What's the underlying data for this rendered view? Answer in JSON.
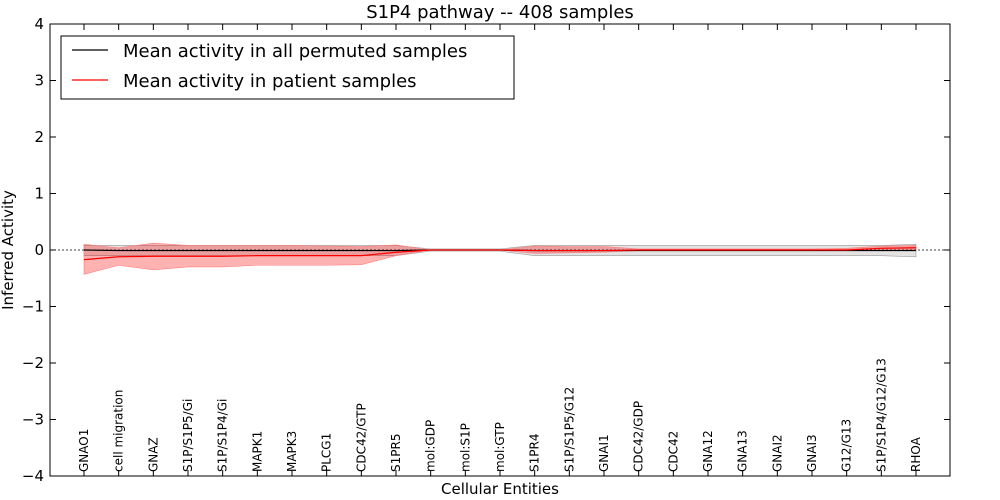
{
  "chart_data": {
    "type": "line",
    "title": "S1P4 pathway -- 408 samples",
    "xlabel": "Cellular Entities",
    "ylabel": "Inferred Activity",
    "ylim": [
      -4,
      4
    ],
    "yticks": [
      -4,
      -3,
      -2,
      -1,
      0,
      1,
      2,
      3,
      4
    ],
    "ytick_labels": [
      "−4",
      "−3",
      "−2",
      "−1",
      "0",
      "1",
      "2",
      "3",
      "4"
    ],
    "categories": [
      "GNAO1",
      "cell migration",
      "GNAZ",
      "S1P/S1P5/Gi",
      "S1P/S1P4/Gi",
      "MAPK1",
      "MAPK3",
      "PLCG1",
      "CDC42/GTP",
      "S1PR5",
      "mol:GDP",
      "mol:S1P",
      "mol:GTP",
      "S1PR4",
      "S1P/S1P5/G12",
      "GNAI1",
      "CDC42/GDP",
      "CDC42",
      "GNA12",
      "GNA13",
      "GNAI2",
      "GNAI3",
      "G12/G13",
      "S1P/S1P4/G12/G13",
      "RHOA"
    ],
    "legend": {
      "position": "top-left"
    },
    "series": [
      {
        "name": "Mean activity in all permuted samples",
        "color": "#000000",
        "band_color": "#c8c8c8",
        "values": [
          0.0,
          -0.01,
          -0.01,
          -0.01,
          -0.01,
          -0.01,
          -0.01,
          -0.01,
          -0.01,
          -0.01,
          0.0,
          0.0,
          0.0,
          -0.01,
          -0.01,
          -0.01,
          -0.01,
          -0.01,
          -0.01,
          -0.01,
          -0.01,
          -0.01,
          -0.01,
          -0.01,
          -0.01
        ],
        "lower": [
          -0.1,
          -0.1,
          -0.1,
          -0.1,
          -0.1,
          -0.1,
          -0.1,
          -0.1,
          -0.1,
          -0.1,
          -0.02,
          -0.02,
          -0.02,
          -0.1,
          -0.1,
          -0.1,
          -0.1,
          -0.1,
          -0.1,
          -0.1,
          -0.1,
          -0.1,
          -0.1,
          -0.1,
          -0.12
        ],
        "upper": [
          0.08,
          0.08,
          0.08,
          0.08,
          0.08,
          0.08,
          0.08,
          0.08,
          0.08,
          0.08,
          0.02,
          0.02,
          0.02,
          0.08,
          0.08,
          0.08,
          0.08,
          0.08,
          0.08,
          0.08,
          0.08,
          0.08,
          0.08,
          0.08,
          0.1
        ]
      },
      {
        "name": "Mean activity in patient samples",
        "color": "#ff0000",
        "band_color": "#ff0000",
        "values": [
          -0.17,
          -0.12,
          -0.11,
          -0.11,
          -0.11,
          -0.1,
          -0.1,
          -0.1,
          -0.1,
          -0.04,
          0.0,
          0.0,
          0.0,
          -0.01,
          -0.01,
          -0.01,
          0.0,
          0.0,
          0.0,
          0.0,
          0.0,
          0.0,
          0.0,
          0.03,
          0.04
        ],
        "lower": [
          -0.43,
          -0.27,
          -0.35,
          -0.3,
          -0.3,
          -0.27,
          -0.27,
          -0.27,
          -0.26,
          -0.1,
          0.0,
          0.0,
          0.0,
          -0.06,
          -0.05,
          -0.04,
          -0.01,
          -0.01,
          -0.01,
          -0.01,
          -0.01,
          -0.01,
          -0.01,
          0.0,
          0.0
        ],
        "upper": [
          0.1,
          0.04,
          0.12,
          0.08,
          0.08,
          0.08,
          0.08,
          0.07,
          0.06,
          0.09,
          0.0,
          0.0,
          0.0,
          0.07,
          0.06,
          0.06,
          0.02,
          0.02,
          0.02,
          0.02,
          0.02,
          0.02,
          0.03,
          0.07,
          0.08
        ]
      }
    ]
  }
}
